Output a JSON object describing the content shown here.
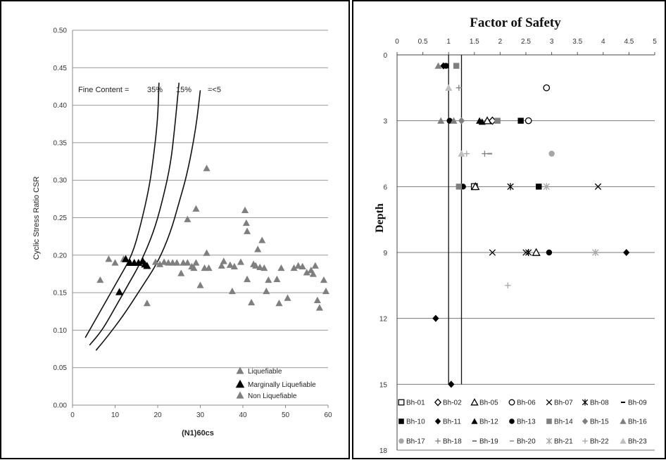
{
  "chart_data": [
    {
      "type": "scatter",
      "xlabel": "(N1)60cs",
      "ylabel": "Cyclic Stress Ratio CSR",
      "xlim": [
        0,
        60
      ],
      "ylim": [
        0,
        0.5
      ],
      "x_ticks": [
        "0",
        "10",
        "20",
        "30",
        "40",
        "50",
        "60"
      ],
      "y_ticks": [
        "0.00",
        "0.05",
        "0.10",
        "0.15",
        "0.20",
        "0.25",
        "0.30",
        "0.35",
        "0.40",
        "0.45",
        "0.50"
      ],
      "grid": "horizontal",
      "annotation": {
        "prefix": "Fine Content =",
        "labels": [
          "35%",
          "15%",
          "=<5"
        ]
      },
      "curves": [
        {
          "name": "35%",
          "points": [
            [
              3,
              0.09
            ],
            [
              5,
              0.11
            ],
            [
              8,
              0.14
            ],
            [
              11,
              0.17
            ],
            [
              14,
              0.2
            ],
            [
              16,
              0.24
            ],
            [
              18,
              0.29
            ],
            [
              19,
              0.33
            ],
            [
              20,
              0.38
            ],
            [
              20.3,
              0.43
            ]
          ]
        },
        {
          "name": "15%",
          "points": [
            [
              4,
              0.08
            ],
            [
              7,
              0.1
            ],
            [
              10,
              0.13
            ],
            [
              13,
              0.16
            ],
            [
              16,
              0.19
            ],
            [
              19,
              0.23
            ],
            [
              21,
              0.27
            ],
            [
              23,
              0.32
            ],
            [
              24,
              0.37
            ],
            [
              25,
              0.43
            ]
          ]
        },
        {
          "name": "=<5",
          "points": [
            [
              5.5,
              0.073
            ],
            [
              8,
              0.09
            ],
            [
              12,
              0.12
            ],
            [
              16,
              0.155
            ],
            [
              20,
              0.19
            ],
            [
              23,
              0.23
            ],
            [
              25,
              0.27
            ],
            [
              27,
              0.31
            ],
            [
              29,
              0.37
            ],
            [
              30,
              0.42
            ]
          ]
        }
      ],
      "legend_position": "bottom-right",
      "series": [
        {
          "name": "Liquefiable",
          "color": "#7f7f7f",
          "points": [
            [
              6.5,
              0.167
            ],
            [
              8.5,
              0.195
            ],
            [
              10,
              0.19
            ],
            [
              12,
              0.195
            ],
            [
              17.5,
              0.136
            ],
            [
              27,
              0.248
            ],
            [
              29,
              0.262
            ],
            [
              31.5,
              0.316
            ],
            [
              40.5,
              0.26
            ],
            [
              40.8,
              0.243
            ],
            [
              41,
              0.232
            ],
            [
              43.5,
              0.208
            ],
            [
              44.5,
              0.22
            ]
          ]
        },
        {
          "name": "Marginally Liquefiable",
          "color": "#000000",
          "points": [
            [
              11,
              0.151
            ],
            [
              12.5,
              0.195
            ],
            [
              13.5,
              0.19
            ],
            [
              14.5,
              0.19
            ],
            [
              15.5,
              0.19
            ],
            [
              16.5,
              0.192
            ],
            [
              17,
              0.188
            ],
            [
              17.5,
              0.186
            ]
          ]
        },
        {
          "name": "Non Liquefiable",
          "color": "#7f7f7f",
          "points": [
            [
              19.5,
              0.191
            ],
            [
              20.5,
              0.188
            ],
            [
              21.5,
              0.191
            ],
            [
              22.5,
              0.19
            ],
            [
              23.5,
              0.19
            ],
            [
              24.5,
              0.19
            ],
            [
              25.5,
              0.176
            ],
            [
              26,
              0.19
            ],
            [
              27,
              0.19
            ],
            [
              28,
              0.185
            ],
            [
              28.5,
              0.183
            ],
            [
              29,
              0.19
            ],
            [
              30,
              0.16
            ],
            [
              31,
              0.183
            ],
            [
              31.5,
              0.203
            ],
            [
              32,
              0.183
            ],
            [
              35,
              0.186
            ],
            [
              35.5,
              0.192
            ],
            [
              37,
              0.187
            ],
            [
              37.5,
              0.152
            ],
            [
              38,
              0.185
            ],
            [
              39.5,
              0.191
            ],
            [
              41,
              0.168
            ],
            [
              42,
              0.137
            ],
            [
              42.5,
              0.188
            ],
            [
              43,
              0.186
            ],
            [
              44,
              0.184
            ],
            [
              45,
              0.183
            ],
            [
              45.5,
              0.152
            ],
            [
              46,
              0.167
            ],
            [
              48,
              0.168
            ],
            [
              48.5,
              0.136
            ],
            [
              49,
              0.183
            ],
            [
              50.5,
              0.143
            ],
            [
              52,
              0.183
            ],
            [
              53,
              0.186
            ],
            [
              54,
              0.185
            ],
            [
              55,
              0.177
            ],
            [
              56,
              0.18
            ],
            [
              56.5,
              0.175
            ],
            [
              57,
              0.186
            ],
            [
              57.5,
              0.14
            ],
            [
              58,
              0.13
            ],
            [
              59,
              0.167
            ],
            [
              59.5,
              0.152
            ]
          ]
        }
      ]
    },
    {
      "type": "scatter",
      "title": "Factor of Safety",
      "ylabel": "Depth",
      "xlim": [
        0,
        5
      ],
      "ylim": [
        0,
        18
      ],
      "x_ticks": [
        "0",
        "0.5",
        "1",
        "1.5",
        "2",
        "2.5",
        "3",
        "3.5",
        "4",
        "4.5",
        "5"
      ],
      "y_ticks": [
        "0",
        "3",
        "6",
        "9",
        "12",
        "15",
        "18"
      ],
      "x_axis_position": "top",
      "y_reversed": true,
      "grid": "horizontal",
      "vertical_lines": [
        1.0,
        1.25
      ],
      "legend_position": "bottom",
      "series": [
        {
          "name": "Bh-01",
          "marker": "square-open",
          "color": "#000000",
          "points": [
            [
              1.5,
              6
            ]
          ]
        },
        {
          "name": "Bh-02",
          "marker": "diamond-open",
          "color": "#000000",
          "points": [
            [
              1.85,
              3
            ]
          ]
        },
        {
          "name": "Bh-05",
          "marker": "triangle-open",
          "color": "#000000",
          "points": [
            [
              1.75,
              3
            ],
            [
              1.52,
              6
            ],
            [
              2.7,
              9
            ]
          ]
        },
        {
          "name": "Bh-06",
          "marker": "circle-open",
          "color": "#000000",
          "points": [
            [
              2.9,
              1.5
            ],
            [
              2.55,
              3
            ]
          ]
        },
        {
          "name": "Bh-07",
          "marker": "x",
          "color": "#000000",
          "points": [
            [
              1.85,
              9
            ],
            [
              2.5,
              9
            ],
            [
              3.9,
              6
            ]
          ]
        },
        {
          "name": "Bh-08",
          "marker": "star",
          "color": "#000000",
          "points": [
            [
              2.2,
              6
            ],
            [
              2.55,
              9
            ]
          ]
        },
        {
          "name": "Bh-09",
          "marker": "dash",
          "color": "#000000",
          "points": []
        },
        {
          "name": "Bh-10",
          "marker": "square",
          "color": "#000000",
          "points": [
            [
              2.4,
              3
            ],
            [
              2.75,
              6
            ]
          ]
        },
        {
          "name": "Bh-11",
          "marker": "diamond",
          "color": "#000000",
          "points": [
            [
              0.9,
              0.5
            ],
            [
              0.75,
              12
            ],
            [
              1.05,
              15
            ],
            [
              4.45,
              9
            ]
          ]
        },
        {
          "name": "Bh-12",
          "marker": "triangle",
          "color": "#000000",
          "points": [
            [
              1.6,
              3
            ],
            [
              1.65,
              3.05
            ]
          ]
        },
        {
          "name": "Bh-13",
          "marker": "circle",
          "color": "#000000",
          "points": [
            [
              0.95,
              0.5
            ],
            [
              1.02,
              3
            ],
            [
              1.28,
              6
            ],
            [
              2.95,
              9
            ]
          ]
        },
        {
          "name": "Bh-14",
          "marker": "square",
          "color": "#7f7f7f",
          "points": [
            [
              1.15,
              0.5
            ],
            [
              1.2,
              6
            ],
            [
              1.95,
              3
            ]
          ]
        },
        {
          "name": "Bh-15",
          "marker": "diamond",
          "color": "#7f7f7f",
          "points": [
            [
              1.25,
              3
            ]
          ]
        },
        {
          "name": "Bh-16",
          "marker": "triangle",
          "color": "#7f7f7f",
          "points": [
            [
              0.8,
              0.5
            ],
            [
              0.85,
              3
            ],
            [
              1.1,
              3
            ]
          ]
        },
        {
          "name": "Bh-17",
          "marker": "circle",
          "color": "#a6a6a6",
          "points": [
            [
              3.0,
              4.5
            ]
          ]
        },
        {
          "name": "Bh-18",
          "marker": "plus",
          "color": "#7f7f7f",
          "points": [
            [
              1.2,
              1.5
            ],
            [
              1.7,
              4.5
            ]
          ]
        },
        {
          "name": "Bh-19",
          "marker": "dash",
          "color": "#7f7f7f",
          "points": [
            [
              1.8,
              4.5
            ]
          ]
        },
        {
          "name": "Bh-20",
          "marker": "dash",
          "color": "#a6a6a6",
          "points": []
        },
        {
          "name": "Bh-21",
          "marker": "star",
          "color": "#a6a6a6",
          "points": [
            [
              2.9,
              6
            ],
            [
              3.85,
              9
            ]
          ]
        },
        {
          "name": "Bh-22",
          "marker": "plus",
          "color": "#a6a6a6",
          "points": [
            [
              1.35,
              4.5
            ],
            [
              2.15,
              10.5
            ]
          ]
        },
        {
          "name": "Bh-23",
          "marker": "triangle",
          "color": "#bfbfbf",
          "points": [
            [
              1.0,
              1.5
            ],
            [
              1.25,
              4.5
            ]
          ]
        }
      ]
    }
  ]
}
